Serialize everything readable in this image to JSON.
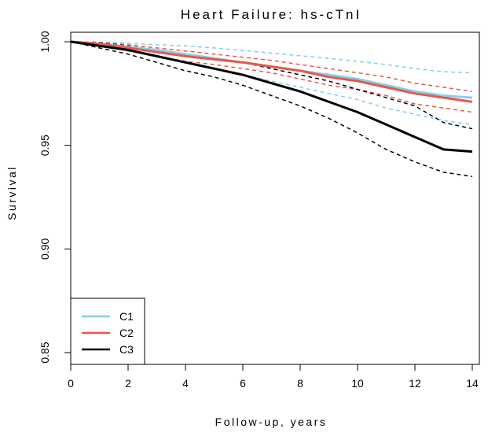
{
  "chart_data": {
    "type": "line",
    "title": "Heart Failure: hs-cTnI",
    "xlabel": "Follow-up, years",
    "ylabel": "Survival",
    "xlim": [
      0,
      14
    ],
    "ylim": [
      0.85,
      1.0
    ],
    "x_ticks": [
      "0",
      "2",
      "4",
      "6",
      "8",
      "10",
      "12",
      "14"
    ],
    "y_ticks": [
      "0.85",
      "0.90",
      "0.95",
      "1.00"
    ],
    "grid": false,
    "legend_position": "bottom-left",
    "legend": [
      "C1",
      "C2",
      "C3"
    ],
    "series": [
      {
        "name": "C1",
        "color": "#87CEEB",
        "x": [
          0,
          1,
          2,
          3,
          4,
          5,
          6,
          7,
          8,
          9,
          10,
          11,
          12,
          13,
          14
        ],
        "values": [
          1.0,
          0.999,
          0.9975,
          0.996,
          0.994,
          0.992,
          0.99,
          0.988,
          0.986,
          0.984,
          0.982,
          0.979,
          0.976,
          0.974,
          0.973
        ],
        "ci_upper": [
          1.0,
          0.9998,
          0.9993,
          0.9985,
          0.998,
          0.997,
          0.9958,
          0.9945,
          0.9932,
          0.992,
          0.9905,
          0.989,
          0.987,
          0.9855,
          0.985
        ],
        "ci_lower": [
          1.0,
          0.998,
          0.9955,
          0.993,
          0.99,
          0.987,
          0.984,
          0.981,
          0.978,
          0.975,
          0.972,
          0.968,
          0.965,
          0.962,
          0.96
        ]
      },
      {
        "name": "C2",
        "color": "#E8584A",
        "x": [
          0,
          1,
          2,
          3,
          4,
          5,
          6,
          7,
          8,
          9,
          10,
          11,
          12,
          13,
          14
        ],
        "values": [
          1.0,
          0.999,
          0.997,
          0.995,
          0.993,
          0.9915,
          0.99,
          0.988,
          0.986,
          0.983,
          0.981,
          0.978,
          0.975,
          0.973,
          0.971
        ],
        "ci_upper": [
          1.0,
          0.9995,
          0.9985,
          0.997,
          0.9955,
          0.994,
          0.9925,
          0.991,
          0.989,
          0.987,
          0.985,
          0.983,
          0.98,
          0.978,
          0.976
        ],
        "ci_lower": [
          1.0,
          0.9985,
          0.9955,
          0.993,
          0.9905,
          0.989,
          0.987,
          0.985,
          0.982,
          0.979,
          0.977,
          0.974,
          0.97,
          0.968,
          0.966
        ]
      },
      {
        "name": "C3",
        "color": "#000000",
        "x": [
          0,
          1,
          2,
          3,
          4,
          5,
          6,
          7,
          8,
          9,
          10,
          11,
          12,
          13,
          14
        ],
        "values": [
          1.0,
          0.998,
          0.996,
          0.993,
          0.99,
          0.987,
          0.984,
          0.98,
          0.976,
          0.971,
          0.966,
          0.96,
          0.954,
          0.948,
          0.947
        ],
        "ci_upper": [
          1.0,
          0.9995,
          0.998,
          0.996,
          0.994,
          0.992,
          0.99,
          0.987,
          0.984,
          0.981,
          0.977,
          0.973,
          0.969,
          0.961,
          0.958
        ],
        "ci_lower": [
          1.0,
          0.997,
          0.994,
          0.99,
          0.986,
          0.983,
          0.979,
          0.974,
          0.969,
          0.963,
          0.956,
          0.948,
          0.942,
          0.937,
          0.935
        ]
      }
    ]
  }
}
